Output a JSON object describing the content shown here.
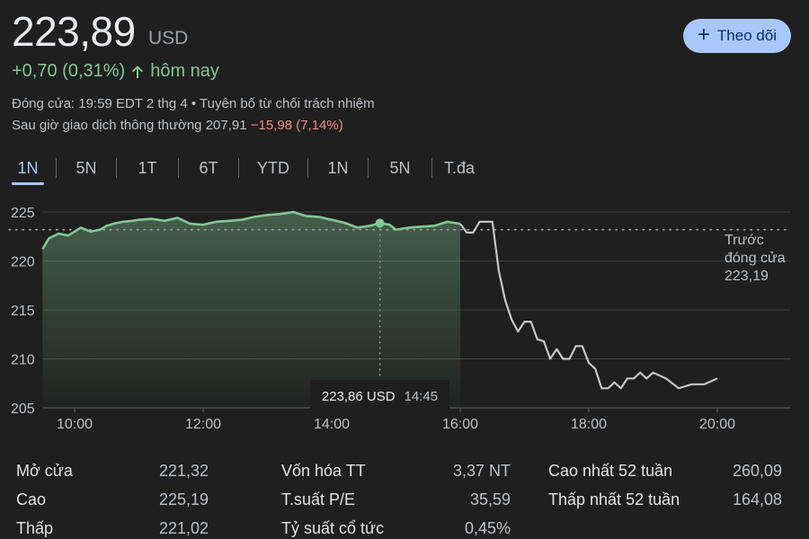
{
  "header": {
    "price": "223,89",
    "currency": "USD",
    "follow_label": "Theo dõi",
    "change_text": "+0,70 (0,31%)",
    "change_period": "hôm nay",
    "close_info": "Đóng cửa: 19:59 EDT 2 thg 4 • Tuyên bố từ chối trách nhiệm",
    "after_hours_label": "Sau giờ giao dịch thông thường 207,91",
    "after_hours_change": "−15,98 (7,14%)"
  },
  "tabs": [
    {
      "label": "1N",
      "active": true
    },
    {
      "label": "5N",
      "active": false
    },
    {
      "label": "1T",
      "active": false
    },
    {
      "label": "6T",
      "active": false
    },
    {
      "label": "YTD",
      "active": false
    },
    {
      "label": "1N",
      "active": false
    },
    {
      "label": "5N",
      "active": false
    },
    {
      "label": "T.đa",
      "active": false
    }
  ],
  "chart_data": {
    "type": "line",
    "y_ticks": [
      "225",
      "220",
      "215",
      "210",
      "205"
    ],
    "x_ticks": [
      "10:00",
      "12:00",
      "14:00",
      "16:00",
      "18:00",
      "20:00"
    ],
    "ylim": [
      205,
      225
    ],
    "previous_close": {
      "label_lines": [
        "Trước",
        "đóng cửa",
        "223,19"
      ],
      "value": 223.19
    },
    "tooltip": {
      "price": "223,86 USD",
      "time": "14:45"
    },
    "regular_session": {
      "x": [
        9.5,
        9.6,
        9.75,
        9.9,
        10.0,
        10.1,
        10.25,
        10.4,
        10.5,
        10.6,
        10.75,
        10.9,
        11.0,
        11.2,
        11.4,
        11.6,
        11.8,
        12.0,
        12.2,
        12.4,
        12.6,
        12.8,
        13.0,
        13.2,
        13.4,
        13.6,
        13.8,
        14.0,
        14.2,
        14.4,
        14.6,
        14.75,
        14.9,
        15.0,
        15.2,
        15.4,
        15.6,
        15.8,
        16.0
      ],
      "y": [
        221.2,
        222.3,
        222.8,
        222.6,
        223.0,
        223.4,
        223.0,
        223.2,
        223.6,
        223.8,
        224.0,
        224.1,
        224.2,
        224.3,
        224.1,
        224.4,
        223.8,
        223.7,
        224.0,
        224.1,
        224.2,
        224.5,
        224.7,
        224.8,
        225.0,
        224.6,
        224.5,
        224.2,
        223.9,
        223.4,
        223.6,
        223.86,
        223.7,
        223.2,
        223.4,
        223.5,
        223.6,
        224.0,
        223.8
      ]
    },
    "extended_session": {
      "x": [
        16.0,
        16.1,
        16.2,
        16.3,
        16.4,
        16.5,
        16.6,
        16.7,
        16.8,
        16.9,
        17.0,
        17.1,
        17.2,
        17.3,
        17.4,
        17.5,
        17.6,
        17.7,
        17.8,
        17.9,
        18.0,
        18.1,
        18.2,
        18.3,
        18.4,
        18.5,
        18.6,
        18.7,
        18.8,
        18.9,
        19.0,
        19.2,
        19.4,
        19.6,
        19.8,
        20.0
      ],
      "y": [
        223.8,
        222.9,
        222.9,
        224.0,
        224.0,
        224.0,
        219.0,
        216.0,
        214.0,
        212.8,
        213.8,
        213.8,
        212.0,
        211.8,
        210.0,
        211.0,
        210.0,
        210.0,
        211.3,
        211.3,
        209.6,
        209.0,
        207.0,
        207.0,
        207.6,
        207.0,
        208.0,
        208.0,
        208.6,
        208.0,
        208.6,
        208.0,
        207.0,
        207.4,
        207.4,
        208.0
      ]
    }
  },
  "stats": {
    "col1": [
      {
        "label": "Mở cửa",
        "value": "221,32"
      },
      {
        "label": "Cao",
        "value": "225,19"
      },
      {
        "label": "Thấp",
        "value": "221,02"
      }
    ],
    "col2": [
      {
        "label": "Vốn hóa TT",
        "value": "3,37 NT"
      },
      {
        "label": "T.suất P/E",
        "value": "35,59"
      },
      {
        "label": "Tỷ suất cổ tức",
        "value": "0,45%"
      }
    ],
    "col3": [
      {
        "label": "Cao nhất 52 tuần",
        "value": "260,09"
      },
      {
        "label": "Thấp nhất 52 tuần",
        "value": "164,08"
      }
    ]
  },
  "colors": {
    "up": "#81c995",
    "down": "#f28b82",
    "accent": "#a8c7fa",
    "extended_line": "#c4c7c5"
  }
}
